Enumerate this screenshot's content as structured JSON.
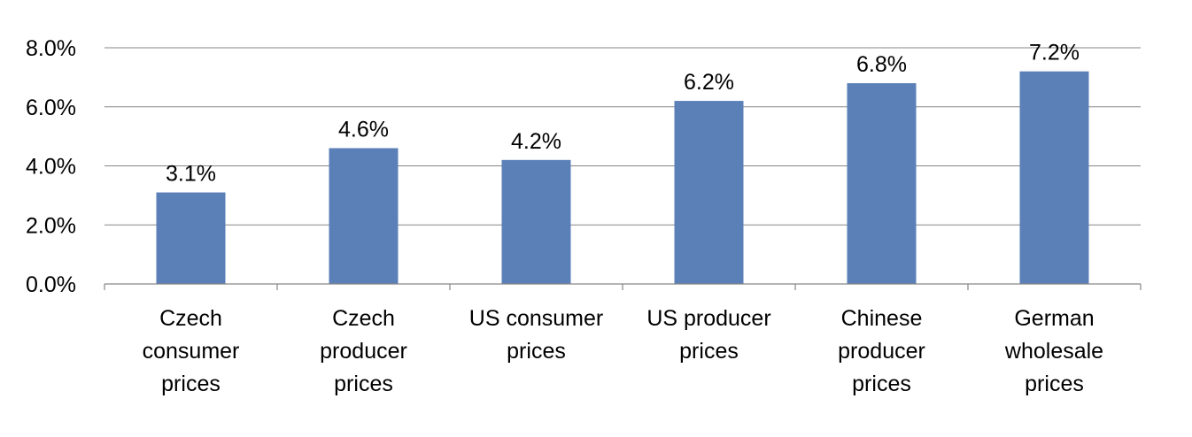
{
  "chart_data": {
    "type": "bar",
    "categories": [
      "Czech consumer prices",
      "Czech producer prices",
      "US consumer prices",
      "US producer prices",
      "Chinese producer prices",
      "German wholesale prices"
    ],
    "category_lines": [
      [
        "Czech",
        "consumer",
        "prices"
      ],
      [
        "Czech",
        "producer",
        "prices"
      ],
      [
        "US consumer",
        "prices"
      ],
      [
        "US producer",
        "prices"
      ],
      [
        "Chinese",
        "producer",
        "prices"
      ],
      [
        "German",
        "wholesale",
        "prices"
      ]
    ],
    "values": [
      3.1,
      4.6,
      4.2,
      6.2,
      6.8,
      7.2
    ],
    "data_labels": [
      "3.1%",
      "4.6%",
      "4.2%",
      "6.2%",
      "6.8%",
      "7.2%"
    ],
    "title": "",
    "xlabel": "",
    "ylabel": "",
    "ylim": [
      0,
      8
    ],
    "yticks": [
      0,
      2,
      4,
      6,
      8
    ],
    "ytick_labels": [
      "0.0%",
      "2.0%",
      "4.0%",
      "6.0%",
      "8.0%"
    ],
    "grid": true,
    "legend": "none",
    "colors": {
      "bar": "#5b80b8",
      "grid": "#868686",
      "text": "#000000"
    }
  }
}
